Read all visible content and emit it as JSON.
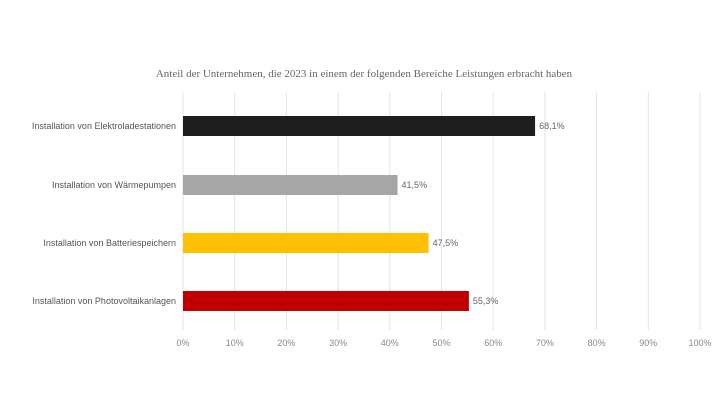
{
  "chart_data": {
    "type": "bar",
    "orientation": "horizontal",
    "title": "Anteil der Unternehmen, die 2023 in einem der folgenden Bereiche Leistungen erbracht haben",
    "categories": [
      "Installation von Elektroladestationen",
      "Installation von Wärmepumpen",
      "Installation von Batteriespeichern",
      "Installation von Photovoltaikanlagen"
    ],
    "values": [
      68.1,
      41.5,
      47.5,
      55.3
    ],
    "value_labels": [
      "68,1%",
      "41,5%",
      "47,5%",
      "55,3%"
    ],
    "colors": [
      "#1e1e1e",
      "#a6a6a6",
      "#ffc000",
      "#c00000"
    ],
    "xlim": [
      0,
      100
    ],
    "x_ticks": [
      "0%",
      "10%",
      "20%",
      "30%",
      "40%",
      "50%",
      "60%",
      "70%",
      "80%",
      "90%",
      "100%"
    ],
    "grid": true
  }
}
